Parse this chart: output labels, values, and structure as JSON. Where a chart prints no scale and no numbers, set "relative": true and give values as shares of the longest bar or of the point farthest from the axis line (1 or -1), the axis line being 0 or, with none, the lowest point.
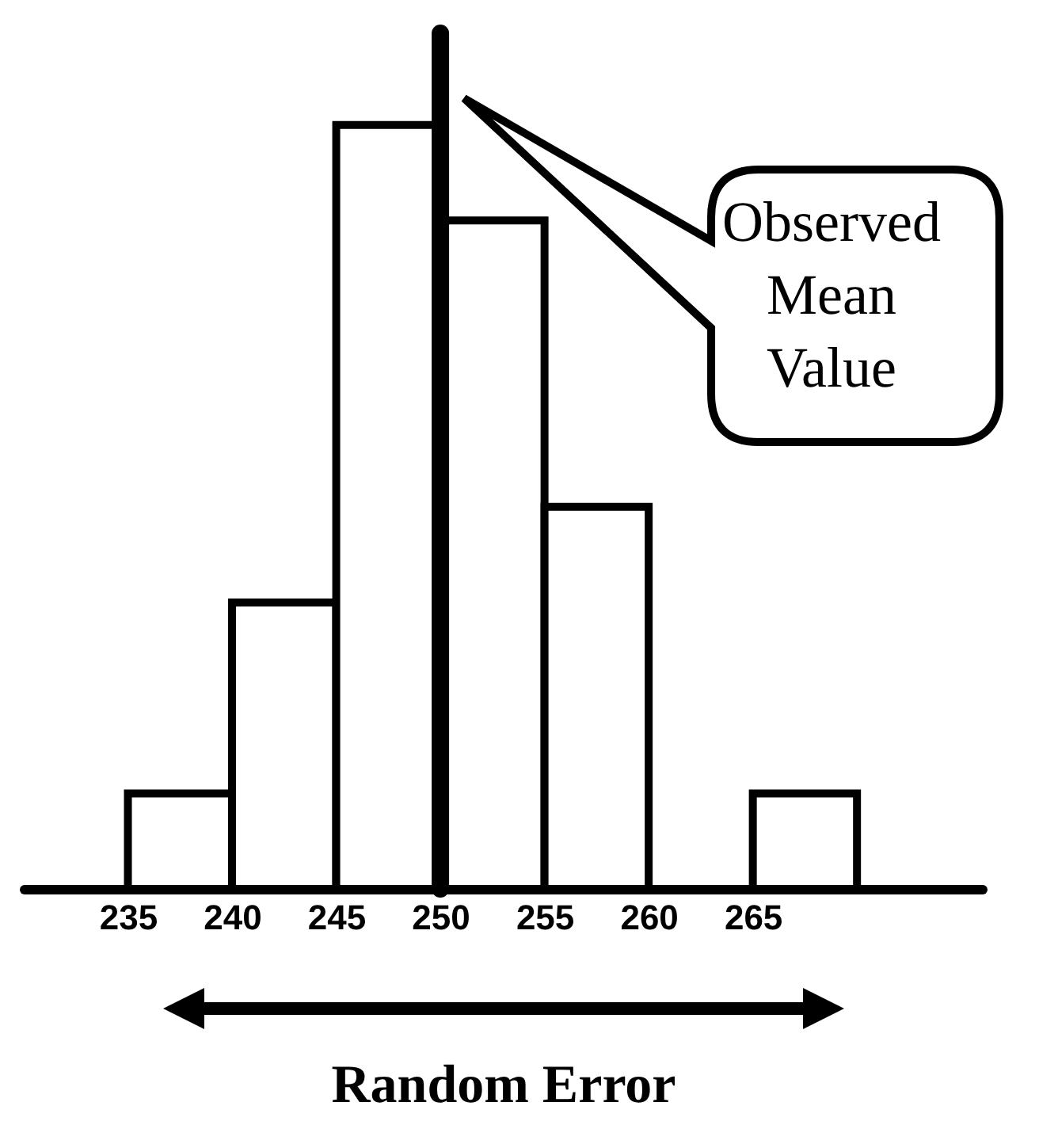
{
  "chart_data": {
    "type": "bar",
    "relative": true,
    "x": [
      237.5,
      242.5,
      247.5,
      252.5,
      257.5,
      262.5,
      267.5
    ],
    "values": [
      0.125,
      0.375,
      1,
      0.875,
      0.5,
      0,
      0.125
    ],
    "color": "#ffffff",
    "xlim": [
      230,
      276
    ],
    "xticks": [
      235,
      240,
      245,
      250,
      255,
      260,
      265
    ],
    "xlabel": "Random Error",
    "tick_labels": "x",
    "grid": false,
    "ref_lines": [
      {
        "axis": "x",
        "value": 250,
        "label": "Observed Mean Value",
        "color": "#000000"
      }
    ]
  }
}
